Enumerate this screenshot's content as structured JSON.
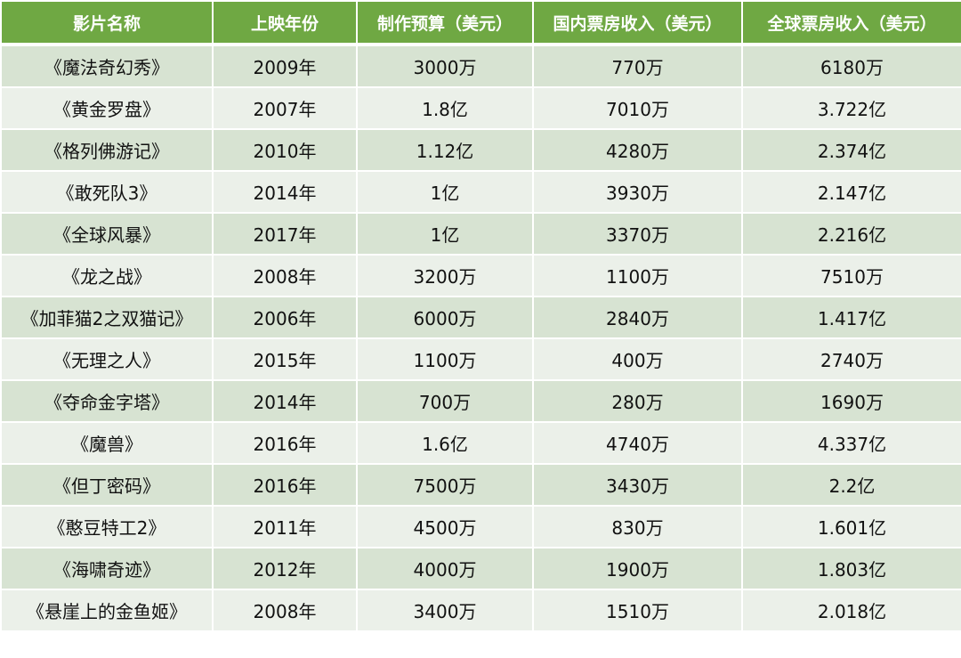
{
  "table": {
    "headers": [
      "影片名称",
      "上映年份",
      "制作预算（美元）",
      "国内票房收入（美元）",
      "全球票房收入（美元）"
    ],
    "rows": [
      [
        "《魔法奇幻秀》",
        "2009年",
        "3000万",
        "770万",
        "6180万"
      ],
      [
        "《黄金罗盘》",
        "2007年",
        "1.8亿",
        "7010万",
        "3.722亿"
      ],
      [
        "《格列佛游记》",
        "2010年",
        "1.12亿",
        "4280万",
        "2.374亿"
      ],
      [
        "《敢死队3》",
        "2014年",
        "1亿",
        "3930万",
        "2.147亿"
      ],
      [
        "《全球风暴》",
        "2017年",
        "1亿",
        "3370万",
        "2.216亿"
      ],
      [
        "《龙之战》",
        "2008年",
        "3200万",
        "1100万",
        "7510万"
      ],
      [
        "《加菲猫2之双猫记》",
        "2006年",
        "6000万",
        "2840万",
        "1.417亿"
      ],
      [
        "《无理之人》",
        "2015年",
        "1100万",
        "400万",
        "2740万"
      ],
      [
        "《夺命金字塔》",
        "2014年",
        "700万",
        "280万",
        "1690万"
      ],
      [
        "《魔兽》",
        "2016年",
        "1.6亿",
        "4740万",
        "4.337亿"
      ],
      [
        "《但丁密码》",
        "2016年",
        "7500万",
        "3430万",
        "2.2亿"
      ],
      [
        "《憨豆特工2》",
        "2011年",
        "4500万",
        "830万",
        "1.601亿"
      ],
      [
        "《海啸奇迹》",
        "2012年",
        "4000万",
        "1900万",
        "1.803亿"
      ],
      [
        "《悬崖上的金鱼姬》",
        "2008年",
        "3400万",
        "1510万",
        "2.018亿"
      ]
    ]
  },
  "colors": {
    "header": "#6fa843",
    "row_dark": "#d7e3d2",
    "row_light": "#ebf0e9"
  }
}
